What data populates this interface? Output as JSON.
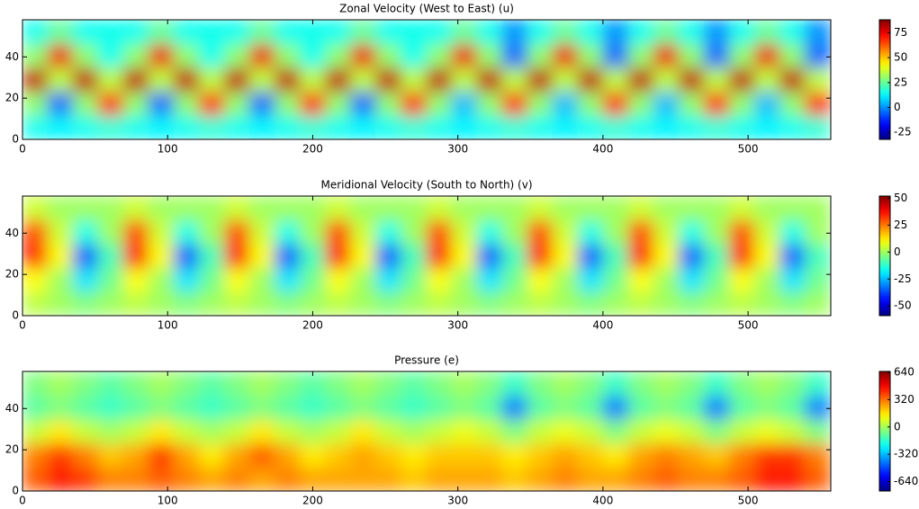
{
  "chart_data": [
    {
      "type": "heatmap",
      "title": "Zonal Velocity (West to East) (u)",
      "colormap": "jet",
      "x": [
        8.7,
        26.1,
        43.5,
        60.9,
        78.3,
        95.7,
        113.1,
        130.5,
        147.9,
        165.3,
        182.7,
        200.1,
        217.5,
        234.9,
        252.3,
        269.7,
        287.1,
        304.5,
        321.9,
        339.3,
        356.7,
        374.1,
        391.5,
        408.9,
        426.3,
        443.7,
        461.1,
        478.5,
        495.9,
        513.3,
        530.7,
        548.1
      ],
      "y": [
        5.8,
        17.4,
        29,
        40.6,
        52.2
      ],
      "z": [
        [
          15,
          12,
          15,
          18,
          15,
          12,
          15,
          18,
          15,
          12,
          15,
          18,
          15,
          12,
          15,
          18,
          15,
          12,
          15,
          18,
          15,
          12,
          15,
          18,
          15,
          12,
          15,
          18,
          15,
          12,
          15,
          18
        ],
        [
          30,
          -5,
          30,
          70,
          30,
          -5,
          30,
          70,
          30,
          -5,
          30,
          70,
          30,
          -5,
          30,
          70,
          30,
          5,
          30,
          70,
          30,
          5,
          30,
          70,
          30,
          5,
          30,
          70,
          30,
          5,
          30,
          70
        ],
        [
          80,
          35,
          80,
          35,
          80,
          35,
          80,
          35,
          80,
          35,
          80,
          35,
          80,
          35,
          80,
          35,
          80,
          35,
          80,
          35,
          80,
          35,
          80,
          35,
          80,
          35,
          80,
          35,
          80,
          35,
          80,
          35
        ],
        [
          30,
          75,
          30,
          15,
          30,
          75,
          30,
          15,
          30,
          75,
          30,
          15,
          30,
          75,
          30,
          15,
          30,
          75,
          30,
          -5,
          30,
          75,
          30,
          -5,
          30,
          75,
          30,
          -5,
          30,
          75,
          30,
          -5
        ],
        [
          15,
          25,
          15,
          15,
          15,
          25,
          15,
          15,
          15,
          25,
          15,
          15,
          15,
          25,
          15,
          15,
          15,
          25,
          15,
          0,
          15,
          25,
          15,
          0,
          15,
          25,
          15,
          0,
          15,
          25,
          15,
          0
        ]
      ],
      "xlim": [
        0,
        557
      ],
      "ylim": [
        0,
        58
      ],
      "xticks": [
        0,
        100,
        200,
        300,
        400,
        500
      ],
      "yticks": [
        0,
        20,
        40
      ],
      "clim": [
        -32,
        88
      ],
      "cticks": [
        -25,
        0,
        25,
        50,
        75
      ]
    },
    {
      "type": "heatmap",
      "title": "Meridional Velocity (South to North) (v)",
      "colormap": "jet",
      "x": [
        8.7,
        26.1,
        43.5,
        60.9,
        78.3,
        95.7,
        113.1,
        130.5,
        147.9,
        165.3,
        182.7,
        200.1,
        217.5,
        234.9,
        252.3,
        269.7,
        287.1,
        304.5,
        321.9,
        339.3,
        356.7,
        374.1,
        391.5,
        408.9,
        426.3,
        443.7,
        461.1,
        478.5,
        495.9,
        513.3,
        530.7,
        548.1
      ],
      "y": [
        5.8,
        17.4,
        29,
        40.6,
        52.2
      ],
      "z": [
        [
          3,
          0,
          -3,
          0,
          3,
          0,
          -3,
          0,
          3,
          0,
          -3,
          0,
          3,
          0,
          -3,
          0,
          3,
          0,
          -3,
          0,
          3,
          0,
          -3,
          0,
          3,
          0,
          -3,
          0,
          3,
          0,
          -3,
          0
        ],
        [
          10,
          0,
          -20,
          -5,
          10,
          0,
          -20,
          -5,
          10,
          0,
          -20,
          -5,
          10,
          0,
          -20,
          -5,
          10,
          0,
          -20,
          -5,
          10,
          0,
          -20,
          -5,
          10,
          0,
          -20,
          -5,
          10,
          0,
          -20,
          -5
        ],
        [
          35,
          10,
          -35,
          -10,
          35,
          10,
          -35,
          -10,
          35,
          10,
          -35,
          -10,
          35,
          10,
          -35,
          -10,
          35,
          10,
          -35,
          -10,
          35,
          10,
          -35,
          -10,
          35,
          10,
          -35,
          -10,
          35,
          10,
          -35,
          -10
        ],
        [
          30,
          5,
          -15,
          0,
          30,
          5,
          -15,
          0,
          30,
          5,
          -15,
          0,
          30,
          5,
          -15,
          0,
          30,
          5,
          -15,
          0,
          30,
          5,
          -15,
          0,
          30,
          5,
          -15,
          0,
          30,
          5,
          -15,
          0
        ],
        [
          5,
          0,
          0,
          0,
          5,
          0,
          0,
          0,
          5,
          0,
          0,
          0,
          5,
          0,
          0,
          0,
          5,
          0,
          0,
          0,
          5,
          0,
          0,
          0,
          5,
          0,
          0,
          0,
          5,
          0,
          0,
          0
        ]
      ],
      "xlim": [
        0,
        557
      ],
      "ylim": [
        0,
        58
      ],
      "xticks": [
        0,
        100,
        200,
        300,
        400,
        500
      ],
      "yticks": [
        0,
        20,
        40
      ],
      "clim": [
        -59,
        52
      ],
      "cticks": [
        -50,
        -25,
        0,
        25,
        50
      ]
    },
    {
      "type": "heatmap",
      "title": "Pressure (e)",
      "colormap": "jet",
      "x": [
        8.7,
        26.1,
        43.5,
        60.9,
        78.3,
        95.7,
        113.1,
        130.5,
        147.9,
        165.3,
        182.7,
        200.1,
        217.5,
        234.9,
        252.3,
        269.7,
        287.1,
        304.5,
        321.9,
        339.3,
        356.7,
        374.1,
        391.5,
        408.9,
        426.3,
        443.7,
        461.1,
        478.5,
        495.9,
        513.3,
        530.7,
        548.1
      ],
      "y": [
        5.8,
        17.4,
        29,
        40.6,
        52.2
      ],
      "z": [
        [
          350,
          450,
          400,
          300,
          300,
          350,
          300,
          250,
          300,
          250,
          300,
          250,
          250,
          250,
          250,
          200,
          250,
          250,
          250,
          200,
          250,
          300,
          250,
          250,
          300,
          350,
          300,
          300,
          350,
          450,
          450,
          350
        ],
        [
          300,
          400,
          300,
          200,
          250,
          400,
          250,
          150,
          250,
          350,
          250,
          150,
          200,
          250,
          200,
          150,
          200,
          200,
          200,
          150,
          200,
          250,
          200,
          150,
          250,
          300,
          250,
          200,
          300,
          400,
          400,
          300
        ],
        [
          50,
          150,
          50,
          0,
          50,
          150,
          50,
          0,
          50,
          150,
          50,
          0,
          50,
          150,
          50,
          0,
          50,
          100,
          50,
          -50,
          50,
          100,
          50,
          -50,
          50,
          100,
          50,
          -50,
          50,
          100,
          50,
          -50
        ],
        [
          -100,
          -50,
          -100,
          -150,
          -100,
          -50,
          -100,
          -150,
          -100,
          -50,
          -100,
          -150,
          -100,
          -50,
          -100,
          -150,
          -100,
          -50,
          -100,
          -400,
          -100,
          -50,
          -100,
          -400,
          -100,
          -50,
          -100,
          -400,
          -100,
          -50,
          -100,
          -400
        ],
        [
          -50,
          0,
          -50,
          -100,
          -50,
          0,
          -50,
          -100,
          -50,
          0,
          -50,
          -100,
          -50,
          0,
          -50,
          -100,
          -50,
          0,
          -50,
          -150,
          -50,
          0,
          -50,
          -150,
          -50,
          0,
          -50,
          -150,
          -50,
          0,
          -50,
          -150
        ]
      ],
      "xlim": [
        0,
        557
      ],
      "ylim": [
        0,
        58
      ],
      "xticks": [
        0,
        100,
        200,
        300,
        400,
        500
      ],
      "yticks": [
        0,
        20,
        40
      ],
      "clim": [
        -750,
        650
      ],
      "cticks": [
        -640,
        -320,
        0,
        320,
        640
      ]
    }
  ]
}
